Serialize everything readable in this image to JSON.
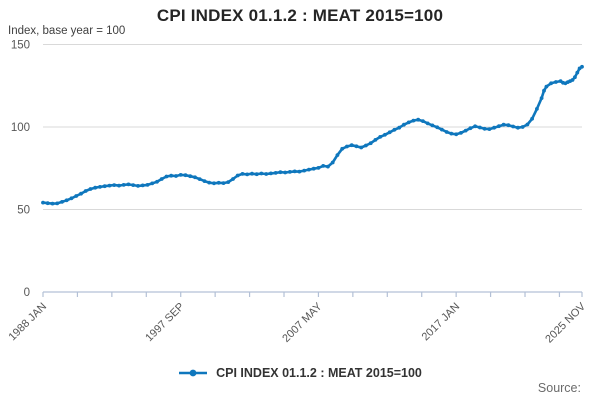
{
  "title": "CPI INDEX 01.1.2 : MEAT 2015=100",
  "y_axis_label": "Index, base year = 100",
  "source_label": "Source:",
  "legend": {
    "label": "CPI INDEX 01.1.2 : MEAT 2015=100"
  },
  "colors": {
    "line": "#0f77bd",
    "grid": "#d9d9d9",
    "axis": "#b3c0d6",
    "tick_text": "#575757",
    "title_text": "#252525",
    "legend_text": "#333333",
    "source_text": "#6b6b6b"
  },
  "chart_data": {
    "type": "line",
    "title": "CPI INDEX 01.1.2 : MEAT 2015=100",
    "ylabel": "Index, base year = 100",
    "ylim": [
      0,
      150
    ],
    "y_ticks": [
      0,
      50,
      100,
      150
    ],
    "grid": "horizontal-only",
    "legend_position": "bottom-center",
    "x_unit": "months since 1988 JAN",
    "x_range_months": [
      0,
      454
    ],
    "minor_tick_interval_months": 29,
    "x_tick_labels": [
      "1988 JAN",
      "1997 SEP",
      "2007 MAY",
      "2017 JAN",
      "2025 NOV"
    ],
    "x_tick_label_months": [
      0,
      116,
      232,
      348,
      454
    ],
    "series": [
      {
        "name": "CPI INDEX 01.1.2 : MEAT 2015=100",
        "color": "#0f77bd",
        "points": [
          [
            0,
            54.2
          ],
          [
            4,
            53.8
          ],
          [
            8,
            53.6
          ],
          [
            12,
            53.7
          ],
          [
            16,
            54.6
          ],
          [
            20,
            55.6
          ],
          [
            24,
            56.8
          ],
          [
            28,
            58.2
          ],
          [
            32,
            59.6
          ],
          [
            36,
            61.2
          ],
          [
            40,
            62.4
          ],
          [
            44,
            63.2
          ],
          [
            48,
            63.7
          ],
          [
            52,
            64.1
          ],
          [
            56,
            64.5
          ],
          [
            60,
            64.8
          ],
          [
            64,
            64.5
          ],
          [
            68,
            64.9
          ],
          [
            72,
            65.2
          ],
          [
            76,
            64.8
          ],
          [
            80,
            64.3
          ],
          [
            84,
            64.6
          ],
          [
            88,
            64.9
          ],
          [
            92,
            65.8
          ],
          [
            96,
            66.8
          ],
          [
            100,
            68.5
          ],
          [
            104,
            70.0
          ],
          [
            108,
            70.5
          ],
          [
            112,
            70.3
          ],
          [
            116,
            71.0
          ],
          [
            120,
            70.8
          ],
          [
            124,
            70.2
          ],
          [
            128,
            69.5
          ],
          [
            132,
            68.4
          ],
          [
            136,
            67.2
          ],
          [
            140,
            66.3
          ],
          [
            144,
            65.9
          ],
          [
            148,
            66.2
          ],
          [
            152,
            66.0
          ],
          [
            156,
            66.6
          ],
          [
            160,
            68.5
          ],
          [
            164,
            70.6
          ],
          [
            168,
            71.6
          ],
          [
            172,
            71.3
          ],
          [
            176,
            71.7
          ],
          [
            180,
            71.4
          ],
          [
            184,
            71.8
          ],
          [
            188,
            71.5
          ],
          [
            192,
            71.9
          ],
          [
            196,
            72.2
          ],
          [
            200,
            72.6
          ],
          [
            204,
            72.4
          ],
          [
            208,
            72.8
          ],
          [
            212,
            73.1
          ],
          [
            216,
            73.0
          ],
          [
            220,
            73.6
          ],
          [
            224,
            74.2
          ],
          [
            228,
            74.7
          ],
          [
            232,
            75.2
          ],
          [
            236,
            76.4
          ],
          [
            240,
            76.0
          ],
          [
            244,
            78.5
          ],
          [
            248,
            83.0
          ],
          [
            252,
            86.8
          ],
          [
            256,
            88.2
          ],
          [
            260,
            89.0
          ],
          [
            264,
            88.3
          ],
          [
            268,
            87.6
          ],
          [
            272,
            88.8
          ],
          [
            276,
            90.2
          ],
          [
            280,
            92.2
          ],
          [
            284,
            94.0
          ],
          [
            288,
            95.3
          ],
          [
            292,
            96.8
          ],
          [
            296,
            98.3
          ],
          [
            300,
            99.6
          ],
          [
            304,
            101.4
          ],
          [
            308,
            102.8
          ],
          [
            312,
            103.9
          ],
          [
            316,
            104.4
          ],
          [
            320,
            103.6
          ],
          [
            324,
            102.2
          ],
          [
            328,
            101.0
          ],
          [
            332,
            99.8
          ],
          [
            336,
            98.4
          ],
          [
            340,
            97.0
          ],
          [
            344,
            96.0
          ],
          [
            348,
            95.6
          ],
          [
            352,
            96.4
          ],
          [
            356,
            97.8
          ],
          [
            360,
            99.3
          ],
          [
            364,
            100.4
          ],
          [
            368,
            99.7
          ],
          [
            372,
            98.9
          ],
          [
            376,
            98.7
          ],
          [
            380,
            99.6
          ],
          [
            384,
            100.5
          ],
          [
            388,
            101.4
          ],
          [
            392,
            101.1
          ],
          [
            396,
            100.3
          ],
          [
            400,
            99.6
          ],
          [
            404,
            100.0
          ],
          [
            408,
            101.5
          ],
          [
            412,
            105.0
          ],
          [
            416,
            111.0
          ],
          [
            420,
            117.5
          ],
          [
            422,
            122.0
          ],
          [
            424,
            124.5
          ],
          [
            428,
            126.5
          ],
          [
            432,
            127.3
          ],
          [
            436,
            127.8
          ],
          [
            438,
            126.8
          ],
          [
            440,
            126.5
          ],
          [
            442,
            127.2
          ],
          [
            444,
            127.8
          ],
          [
            446,
            128.5
          ],
          [
            448,
            130.2
          ],
          [
            450,
            133.0
          ],
          [
            452,
            135.5
          ],
          [
            454,
            136.5
          ]
        ]
      }
    ]
  }
}
